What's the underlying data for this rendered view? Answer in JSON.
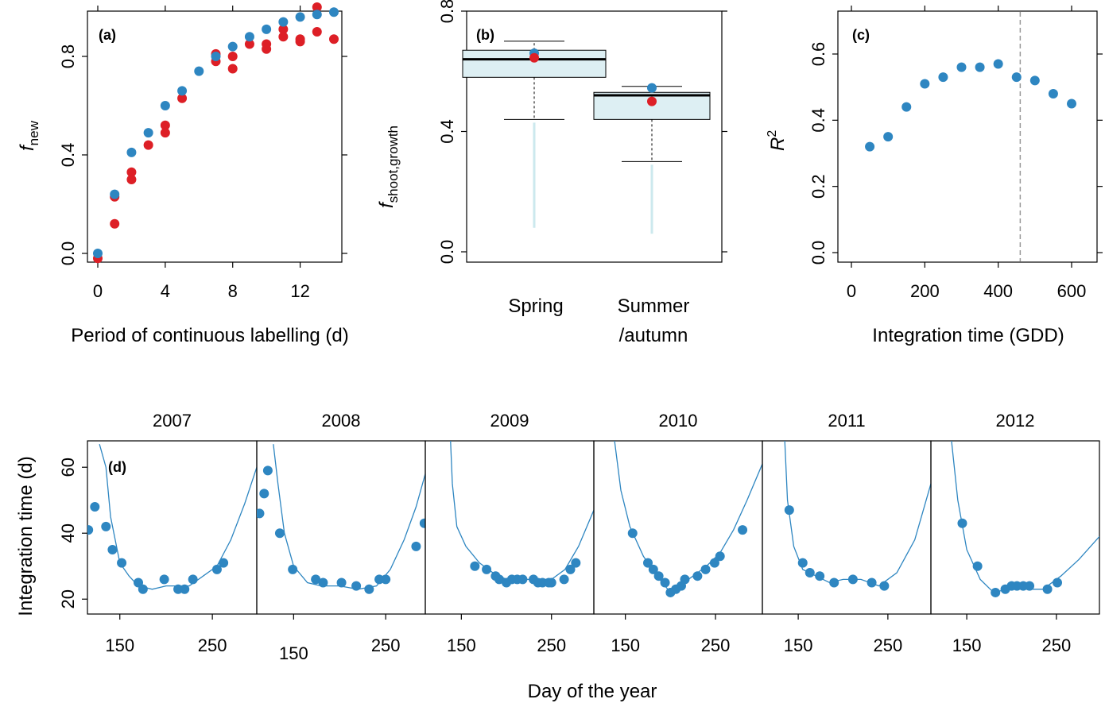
{
  "colors": {
    "blue": "#2e86c1",
    "red": "#dd1f26",
    "box_fill": "#ddeff3",
    "dashed": "#999999",
    "line": "#2e86c1"
  },
  "panel_a": {
    "tag": "(a)",
    "ylabel": "f",
    "ylabel_sub": "new",
    "xlabel": "Period of continuous labelling (d)",
    "x_ticks": [
      "0",
      "4",
      "8",
      "12"
    ],
    "y_ticks": [
      "0.0",
      "0.4",
      "0.8"
    ]
  },
  "panel_b": {
    "tag": "(b)",
    "ylabel": "f",
    "ylabel_sub": "shoot,growth",
    "y_ticks": [
      "0.0",
      "0.4",
      "0.8"
    ],
    "cat1": "Spring",
    "cat2_line1": "Summer",
    "cat2_line2": "/autumn"
  },
  "panel_c": {
    "tag": "(c)",
    "ylabel": "R",
    "ylabel_sup": "2",
    "xlabel": "Integration time (GDD)",
    "x_ticks": [
      "0",
      "200",
      "400",
      "600"
    ],
    "y_ticks": [
      "0.0",
      "0.2",
      "0.4",
      "0.6"
    ]
  },
  "panel_d": {
    "tag": "(d)",
    "ylabel": "Integration time (d)",
    "xlabel": "Day of the year",
    "y_ticks": [
      "20",
      "40",
      "60"
    ],
    "years": [
      "2007",
      "2008",
      "2009",
      "2010",
      "2011",
      "2012"
    ]
  },
  "chart_data": [
    {
      "type": "scatter",
      "panel": "a",
      "xlim": [
        0,
        14
      ],
      "ylim": [
        0,
        1.0
      ],
      "series": [
        {
          "color": "blue",
          "x": [
            0,
            1,
            2,
            3,
            4,
            5,
            6,
            7,
            8,
            9,
            10,
            11,
            12,
            13,
            14
          ],
          "y": [
            0.0,
            0.24,
            0.41,
            0.49,
            0.6,
            0.66,
            0.74,
            0.8,
            0.84,
            0.88,
            0.91,
            0.94,
            0.96,
            0.97,
            0.98
          ]
        },
        {
          "color": "red",
          "x": [
            0,
            1,
            1,
            2,
            2,
            3,
            4,
            4,
            5,
            7,
            7,
            8,
            8,
            9,
            10,
            10,
            11,
            11,
            12,
            12,
            13,
            13,
            14
          ],
          "y": [
            -0.02,
            0.23,
            0.12,
            0.33,
            0.3,
            0.44,
            0.52,
            0.49,
            0.63,
            0.81,
            0.78,
            0.8,
            0.75,
            0.85,
            0.85,
            0.83,
            0.91,
            0.88,
            0.87,
            0.86,
            1.0,
            0.9,
            0.87
          ]
        }
      ]
    },
    {
      "type": "box",
      "panel": "b",
      "ylim": [
        0,
        0.8
      ],
      "categories": [
        "Spring",
        "Summer/autumn"
      ],
      "boxes": [
        {
          "whisker_low": 0.44,
          "q1": 0.58,
          "median": 0.64,
          "q3": 0.67,
          "whisker_high": 0.7,
          "tail_low": 0.08,
          "blue_point": 0.66,
          "red_point": 0.645
        },
        {
          "whisker_low": 0.3,
          "q1": 0.44,
          "median": 0.52,
          "q3": 0.53,
          "whisker_high": 0.55,
          "tail_low": 0.06,
          "blue_point": 0.545,
          "red_point": 0.5
        }
      ]
    },
    {
      "type": "scatter",
      "panel": "c",
      "xlim": [
        0,
        650
      ],
      "ylim": [
        0,
        0.65
      ],
      "x": [
        50,
        100,
        150,
        200,
        250,
        300,
        350,
        400,
        450,
        500,
        550,
        600
      ],
      "y": [
        0.32,
        0.35,
        0.44,
        0.51,
        0.53,
        0.56,
        0.56,
        0.57,
        0.53,
        0.52,
        0.48,
        0.45
      ],
      "vline": 460
    },
    {
      "type": "line",
      "panel": "d",
      "ylim": [
        15,
        68
      ],
      "series": [
        {
          "year": "2007",
          "xlim": [
            115,
            298
          ],
          "points_x": [
            116,
            123,
            135,
            142,
            152,
            170,
            175,
            198,
            213,
            220,
            229,
            255,
            262
          ],
          "points_y": [
            41,
            48,
            42,
            35,
            31,
            25,
            23,
            26,
            23,
            23,
            26,
            29,
            31
          ],
          "curve_x": [
            128,
            135,
            140,
            150,
            160,
            170,
            185,
            200,
            215,
            225,
            240,
            255,
            270,
            285,
            298
          ],
          "curve_y": [
            67,
            60,
            45,
            31,
            27,
            24,
            23,
            24,
            24,
            24,
            27,
            30,
            38,
            49,
            60
          ]
        },
        {
          "year": "2008",
          "xlim": [
            110,
            293
          ],
          "points_x": [
            113,
            118,
            122,
            135,
            149,
            174,
            182,
            202,
            218,
            232,
            243,
            250,
            283,
            292
          ],
          "points_y": [
            46,
            52,
            59,
            40,
            29,
            26,
            25,
            25,
            24,
            23,
            26,
            26,
            36,
            43
          ],
          "curve_x": [
            128,
            133,
            140,
            150,
            165,
            180,
            200,
            220,
            240,
            255,
            270,
            283,
            293
          ],
          "curve_y": [
            67,
            55,
            40,
            30,
            25,
            24,
            24,
            23,
            24,
            29,
            38,
            48,
            58
          ]
        },
        {
          "year": "2009",
          "xlim": [
            110,
            297
          ],
          "points_x": [
            165,
            178,
            188,
            192,
            200,
            206,
            212,
            218,
            230,
            235,
            240,
            247,
            250,
            264,
            271,
            277
          ],
          "points_y": [
            30,
            29,
            27,
            26,
            25,
            26,
            26,
            26,
            26,
            25,
            25,
            25,
            25,
            26,
            29,
            31
          ],
          "curve_x": [
            138,
            140,
            145,
            155,
            170,
            185,
            200,
            230,
            250,
            265,
            280,
            297
          ],
          "curve_y": [
            68,
            55,
            42,
            36,
            31,
            28,
            26,
            26,
            26,
            29,
            36,
            47
          ]
        },
        {
          "year": "2010",
          "xlim": [
            115,
            302
          ],
          "points_x": [
            158,
            175,
            181,
            187,
            194,
            200,
            206,
            212,
            216,
            230,
            239,
            249,
            255,
            280
          ],
          "points_y": [
            40,
            31,
            29,
            27,
            25,
            22,
            23,
            24,
            26,
            27,
            29,
            31,
            33,
            41
          ],
          "curve_x": [
            138,
            145,
            155,
            170,
            185,
            200,
            210,
            225,
            240,
            255,
            270,
            285,
            302
          ],
          "curve_y": [
            68,
            53,
            42,
            33,
            27,
            22,
            24,
            27,
            30,
            34,
            41,
            50,
            61
          ]
        },
        {
          "year": "2011",
          "xlim": [
            110,
            298
          ],
          "points_x": [
            140,
            155,
            163,
            174,
            190,
            211,
            232,
            246
          ],
          "points_y": [
            47,
            31,
            28,
            27,
            25,
            26,
            25,
            24
          ],
          "curve_x": [
            135,
            138,
            145,
            155,
            170,
            185,
            200,
            220,
            240,
            260,
            280,
            298
          ],
          "curve_y": [
            68,
            50,
            36,
            29,
            27,
            25,
            26,
            26,
            24,
            28,
            38,
            55
          ]
        },
        {
          "year": "2012",
          "xlim": [
            110,
            298
          ],
          "points_x": [
            145,
            162,
            182,
            193,
            200,
            206,
            213,
            220,
            240,
            251
          ],
          "points_y": [
            43,
            30,
            22,
            23,
            24,
            24,
            24,
            24,
            23,
            25
          ],
          "curve_x": [
            133,
            140,
            150,
            165,
            180,
            195,
            215,
            235,
            255,
            275,
            298
          ],
          "curve_y": [
            68,
            50,
            35,
            26,
            22,
            23,
            23,
            23,
            27,
            32,
            39
          ]
        }
      ]
    }
  ]
}
